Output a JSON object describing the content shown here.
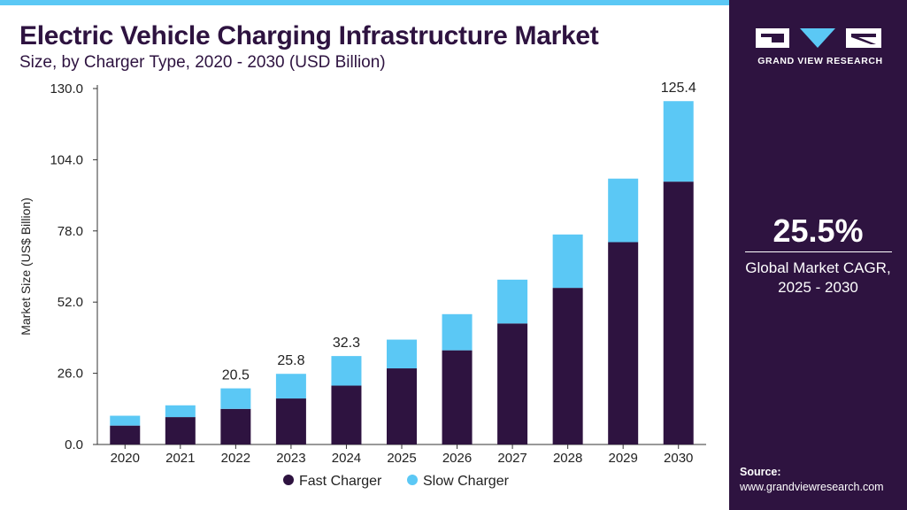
{
  "header": {
    "title": "Electric Vehicle Charging Infrastructure Market",
    "subtitle": "Size, by Charger Type, 2020 - 2030 (USD Billion)"
  },
  "sidebar": {
    "logo_text": "GRAND VIEW RESEARCH",
    "cagr_value": "25.5%",
    "cagr_label_line1": "Global Market CAGR,",
    "cagr_label_line2": "2025 - 2030",
    "source_label": "Source:",
    "source_url": "www.grandviewresearch.com"
  },
  "colors": {
    "fast": "#2e1340",
    "slow": "#5bc8f5",
    "accent": "#2e1340"
  },
  "chart_data": {
    "type": "bar",
    "stacked": true,
    "categories": [
      "2020",
      "2021",
      "2022",
      "2023",
      "2024",
      "2025",
      "2026",
      "2027",
      "2028",
      "2029",
      "2030"
    ],
    "series": [
      {
        "name": "Fast Charger",
        "values": [
          6.9,
          10.0,
          13.0,
          16.8,
          21.5,
          27.8,
          34.4,
          44.2,
          57.2,
          73.9,
          96.0
        ]
      },
      {
        "name": "Slow Charger",
        "values": [
          3.6,
          4.3,
          7.5,
          9.0,
          10.8,
          10.5,
          13.2,
          16.0,
          19.5,
          23.2,
          29.4
        ]
      }
    ],
    "data_labels": [
      {
        "category": "2022",
        "text": "20.5"
      },
      {
        "category": "2023",
        "text": "25.8"
      },
      {
        "category": "2024",
        "text": "32.3"
      },
      {
        "category": "2030",
        "text": "125.4"
      }
    ],
    "title": "",
    "xlabel": "",
    "ylabel": "Market Size (US$ Billion)",
    "ylim": [
      0,
      130
    ],
    "yticks": [
      "0.0",
      "26.0",
      "52.0",
      "78.0",
      "104.0",
      "130.0"
    ],
    "ytick_values": [
      0,
      26,
      52,
      78,
      104,
      130
    ],
    "grid": false,
    "legend_position": "bottom-center"
  }
}
